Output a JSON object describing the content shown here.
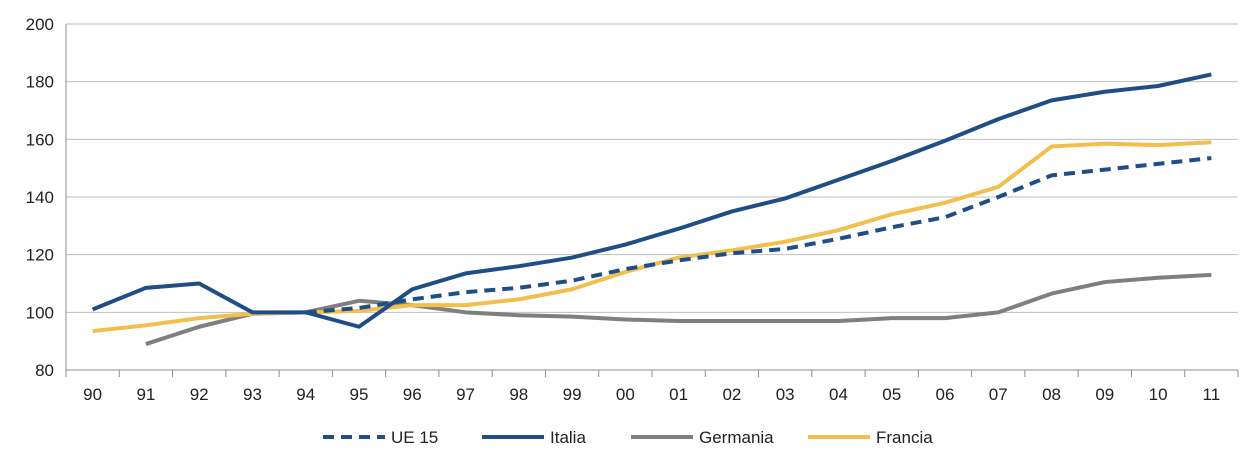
{
  "chart_data": {
    "type": "line",
    "title": "",
    "xlabel": "",
    "ylabel": "",
    "ylim": [
      80,
      200
    ],
    "yticks": [
      80,
      100,
      120,
      140,
      160,
      180,
      200
    ],
    "grid": "horizontal",
    "legend_position": "bottom",
    "categories": [
      "90",
      "91",
      "92",
      "93",
      "94",
      "95",
      "96",
      "97",
      "98",
      "99",
      "00",
      "01",
      "02",
      "03",
      "04",
      "05",
      "06",
      "07",
      "08",
      "09",
      "10",
      "11"
    ],
    "series": [
      {
        "name": "UE 15",
        "color": "#1f4e86",
        "dashed": true,
        "values": [
          null,
          null,
          null,
          null,
          100,
          101.5,
          104.5,
          107,
          108.5,
          111,
          115,
          118,
          120.5,
          122,
          125.5,
          129.5,
          133,
          140,
          147.5,
          149.5,
          151.5,
          153.5
        ]
      },
      {
        "name": "Italia",
        "color": "#1f4e86",
        "dashed": false,
        "values": [
          101,
          108.5,
          110,
          100,
          100,
          95,
          108,
          113.5,
          116,
          119,
          123.5,
          129,
          135,
          139.5,
          146,
          152.5,
          159.5,
          167,
          173.5,
          176.5,
          178.5,
          182.5
        ]
      },
      {
        "name": "Germania",
        "color": "#7f7f7f",
        "dashed": false,
        "values": [
          null,
          89,
          95,
          99.5,
          100,
          104,
          102.5,
          100,
          99,
          98.5,
          97.5,
          97,
          97,
          97,
          97,
          98,
          98,
          100,
          106.5,
          110.5,
          112,
          113
        ]
      },
      {
        "name": "Francia",
        "color": "#f2bf4f",
        "dashed": false,
        "values": [
          93.5,
          95.5,
          98,
          99.5,
          100,
          100.5,
          102.5,
          102.5,
          104.5,
          108,
          114,
          119,
          121.5,
          124.5,
          128.5,
          134,
          138,
          143.5,
          157.5,
          158.5,
          158,
          159
        ]
      }
    ]
  }
}
